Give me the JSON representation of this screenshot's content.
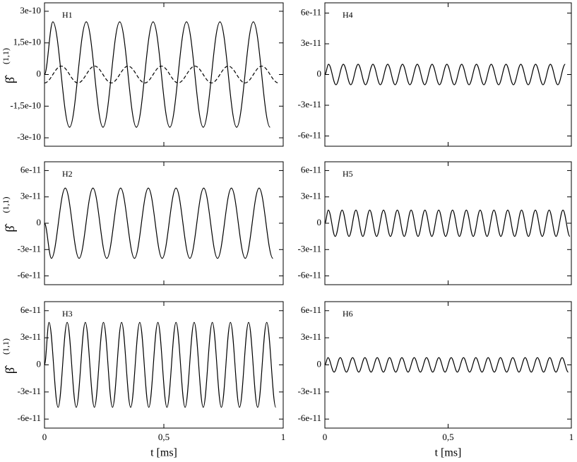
{
  "chart_data": [
    {
      "type": "line",
      "title": "H1",
      "ylabel": "β̂",
      "ylabel_sup": "(1,1)",
      "xlim": [
        0,
        1
      ],
      "xticks": [
        0,
        0.5,
        1
      ],
      "ylim": [
        -3.4e-10,
        3.4e-10
      ],
      "yticks": [
        3e-10,
        {
          "value": 1.5e-10,
          "label": "1,5e-10"
        },
        0,
        {
          "value": -1.5e-10,
          "label": "-1,5e-10"
        },
        -3e-10
      ],
      "series": [
        {
          "color": "#000000",
          "linestyle": "solid",
          "x": [
            0,
            0.035,
            0.105,
            0.175,
            0.245,
            0.315,
            0.385,
            0.455,
            0.525,
            0.595,
            0.665,
            0.735,
            0.805,
            0.875,
            0.945
          ],
          "values": [
            0,
            2.5e-10,
            -2.5e-10,
            2.5e-10,
            -2.5e-10,
            2.5e-10,
            -2.5e-10,
            2.5e-10,
            -2.5e-10,
            2.5e-10,
            -2.5e-10,
            2.5e-10,
            -2.5e-10,
            2.5e-10,
            -2.5e-10
          ]
        },
        {
          "color": "#000000",
          "linestyle": "dashed",
          "x": [
            0,
            0.07,
            0.14,
            0.21,
            0.28,
            0.35,
            0.42,
            0.49,
            0.56,
            0.63,
            0.7,
            0.77,
            0.84,
            0.91,
            0.98
          ],
          "values": [
            -4e-11,
            4e-11,
            -4e-11,
            4e-11,
            -4e-11,
            4e-11,
            -4e-11,
            4e-11,
            -4e-11,
            4e-11,
            -4e-11,
            4e-11,
            -4e-11,
            4e-11,
            -4e-11
          ]
        }
      ]
    },
    {
      "type": "line",
      "title": "H2",
      "ylabel": "β̂",
      "ylabel_sup": "(1,1)",
      "xlim": [
        0,
        1
      ],
      "xticks": [
        0,
        0.5,
        1
      ],
      "ylim": [
        -7e-11,
        7e-11
      ],
      "yticks": [
        6e-11,
        3e-11,
        0,
        -3e-11,
        -6e-11
      ],
      "series": [
        {
          "color": "#000000",
          "linestyle": "solid",
          "x": [
            0,
            0.029,
            0.087,
            0.145,
            0.203,
            0.261,
            0.319,
            0.377,
            0.435,
            0.493,
            0.551,
            0.609,
            0.667,
            0.725,
            0.783,
            0.841,
            0.899,
            0.957
          ],
          "values": [
            0,
            -4e-11,
            4e-11,
            -4e-11,
            4e-11,
            -4e-11,
            4e-11,
            -4e-11,
            4e-11,
            -4e-11,
            4e-11,
            -4e-11,
            4e-11,
            -4e-11,
            4e-11,
            -4e-11,
            4e-11,
            -4e-11
          ]
        }
      ]
    },
    {
      "type": "line",
      "title": "H3",
      "ylabel": "β̂",
      "ylabel_sup": "(1,1)",
      "xlabel": "t [ms]",
      "xlim": [
        0,
        1
      ],
      "xticks": [
        0,
        {
          "value": 0.5,
          "label": "0,5"
        },
        1
      ],
      "ylim": [
        -7e-11,
        7e-11
      ],
      "yticks": [
        6e-11,
        3e-11,
        0,
        -3e-11,
        -6e-11
      ],
      "series": [
        {
          "color": "#000000",
          "linestyle": "solid",
          "x": [
            0,
            0.019,
            0.057,
            0.095,
            0.133,
            0.171,
            0.209,
            0.247,
            0.285,
            0.323,
            0.361,
            0.399,
            0.437,
            0.475,
            0.513,
            0.551,
            0.589,
            0.627,
            0.665,
            0.703,
            0.741,
            0.779,
            0.817,
            0.855,
            0.893,
            0.931,
            0.969
          ],
          "values": [
            0,
            4.7e-11,
            -4.7e-11,
            4.7e-11,
            -4.7e-11,
            4.7e-11,
            -4.7e-11,
            4.7e-11,
            -4.7e-11,
            4.7e-11,
            -4.7e-11,
            4.7e-11,
            -4.7e-11,
            4.7e-11,
            -4.7e-11,
            4.7e-11,
            -4.7e-11,
            4.7e-11,
            -4.7e-11,
            4.7e-11,
            -4.7e-11,
            4.7e-11,
            -4.7e-11,
            4.7e-11,
            -4.7e-11,
            4.7e-11,
            -4.7e-11
          ]
        }
      ]
    },
    {
      "type": "line",
      "title": "H4",
      "xlim": [
        0,
        1
      ],
      "xticks": [
        0,
        0.5,
        1
      ],
      "ylim": [
        -7e-11,
        7e-11
      ],
      "yticks": [
        6e-11,
        3e-11,
        0,
        -3e-11,
        -6e-11
      ],
      "series": [
        {
          "color": "#000000",
          "linestyle": "solid",
          "x": [
            0,
            0.015,
            0.045,
            0.075,
            0.105,
            0.135,
            0.165,
            0.195,
            0.225,
            0.255,
            0.285,
            0.315,
            0.345,
            0.375,
            0.405,
            0.435,
            0.465,
            0.495,
            0.525,
            0.555,
            0.585,
            0.615,
            0.645,
            0.675,
            0.705,
            0.735,
            0.765,
            0.795,
            0.825,
            0.855,
            0.885,
            0.915,
            0.945,
            0.975
          ],
          "values": [
            0,
            1e-11,
            -1e-11,
            1e-11,
            -1e-11,
            1e-11,
            -1e-11,
            1e-11,
            -1e-11,
            1e-11,
            -1e-11,
            1e-11,
            -1e-11,
            1e-11,
            -1e-11,
            1e-11,
            -1e-11,
            1e-11,
            -1e-11,
            1e-11,
            -1e-11,
            1e-11,
            -1e-11,
            1e-11,
            -1e-11,
            1e-11,
            -1e-11,
            1e-11,
            -1e-11,
            1e-11,
            -1e-11,
            1e-11,
            -1e-11,
            1e-11
          ]
        }
      ]
    },
    {
      "type": "line",
      "title": "H5",
      "xlim": [
        0,
        1
      ],
      "xticks": [
        0,
        0.5,
        1
      ],
      "ylim": [
        -7e-11,
        7e-11
      ],
      "yticks": [
        6e-11,
        3e-11,
        0,
        -3e-11,
        -6e-11
      ],
      "series": [
        {
          "color": "#000000",
          "linestyle": "solid",
          "x": [
            0,
            0.014,
            0.042,
            0.07,
            0.098,
            0.126,
            0.154,
            0.182,
            0.21,
            0.238,
            0.266,
            0.294,
            0.322,
            0.35,
            0.378,
            0.406,
            0.434,
            0.462,
            0.49,
            0.518,
            0.546,
            0.574,
            0.602,
            0.63,
            0.658,
            0.686,
            0.714,
            0.742,
            0.77,
            0.798,
            0.826,
            0.854,
            0.882,
            0.91,
            0.938,
            0.966,
            0.994
          ],
          "values": [
            0,
            1.5e-11,
            -1.5e-11,
            1.5e-11,
            -1.5e-11,
            1.5e-11,
            -1.5e-11,
            1.5e-11,
            -1.5e-11,
            1.5e-11,
            -1.5e-11,
            1.5e-11,
            -1.5e-11,
            1.5e-11,
            -1.5e-11,
            1.5e-11,
            -1.5e-11,
            1.5e-11,
            -1.5e-11,
            1.5e-11,
            -1.5e-11,
            1.5e-11,
            -1.5e-11,
            1.5e-11,
            -1.5e-11,
            1.5e-11,
            -1.5e-11,
            1.5e-11,
            -1.5e-11,
            1.5e-11,
            -1.5e-11,
            1.5e-11,
            -1.5e-11,
            1.5e-11,
            -1.5e-11,
            1.5e-11,
            -1.5e-11
          ]
        }
      ]
    },
    {
      "type": "line",
      "title": "H6",
      "xlabel": "t [ms]",
      "xlim": [
        0,
        1
      ],
      "xticks": [
        0,
        {
          "value": 0.5,
          "label": "0,5"
        },
        1
      ],
      "ylim": [
        -7e-11,
        7e-11
      ],
      "yticks": [
        6e-11,
        3e-11,
        0,
        -3e-11,
        -6e-11
      ],
      "series": [
        {
          "color": "#000000",
          "linestyle": "solid",
          "x": [
            0,
            0.0125,
            0.0375,
            0.0625,
            0.0875,
            0.1125,
            0.1375,
            0.1625,
            0.1875,
            0.2125,
            0.2375,
            0.2625,
            0.2875,
            0.3125,
            0.3375,
            0.3625,
            0.3875,
            0.4125,
            0.4375,
            0.4625,
            0.4875,
            0.5125,
            0.5375,
            0.5625,
            0.5875,
            0.6125,
            0.6375,
            0.6625,
            0.6875,
            0.7125,
            0.7375,
            0.7625,
            0.7875,
            0.8125,
            0.8375,
            0.8625,
            0.8875,
            0.9125,
            0.9375,
            0.9625,
            0.9875
          ],
          "values": [
            0,
            8e-12,
            -8e-12,
            8e-12,
            -8e-12,
            8e-12,
            -8e-12,
            8e-12,
            -8e-12,
            8e-12,
            -8e-12,
            8e-12,
            -8e-12,
            8e-12,
            -8e-12,
            8e-12,
            -8e-12,
            8e-12,
            -8e-12,
            8e-12,
            -8e-12,
            8e-12,
            -8e-12,
            8e-12,
            -8e-12,
            8e-12,
            -8e-12,
            8e-12,
            -8e-12,
            8e-12,
            -8e-12,
            8e-12,
            -8e-12,
            8e-12,
            -8e-12,
            8e-12,
            -8e-12,
            8e-12,
            -8e-12,
            8e-12,
            -8e-12
          ]
        }
      ]
    }
  ]
}
